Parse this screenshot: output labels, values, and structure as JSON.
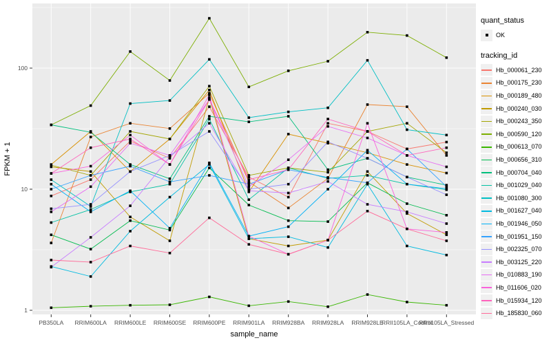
{
  "figure": {
    "background": "#FFFFFF",
    "panel_background": "#EBEBEB",
    "gridline_color": "#FFFFFF",
    "tick_color": "#333333",
    "tick_label_color": "#4D4D4D",
    "point_color": "#000000"
  },
  "chart_data": {
    "type": "line",
    "title": "",
    "xlabel": "sample_name",
    "ylabel": "FPKM + 1",
    "y_scale": "log10",
    "y_ticks": [
      1,
      10,
      100
    ],
    "y_minor_ticks": [
      3.162,
      31.62,
      316.2
    ],
    "ylim": [
      0.9,
      340
    ],
    "grid": true,
    "legend_position": "right",
    "categories": [
      "PB350LA",
      "RRIM600LA",
      "RRIM600LE",
      "RRIM600SE",
      "RRIM600PE",
      "RRIM901LA",
      "RRIM928BA",
      "RRIM928LA",
      "RRIM928LE",
      "RRII105LA_Control",
      "RRII105LA_Stressed"
    ],
    "legend": {
      "quant_status_title": "quant_status",
      "quant_status_items": [
        "OK"
      ],
      "tracking_title": "tracking_id"
    },
    "series": [
      {
        "tracking_id": "Hb_000061_230",
        "color": "#F8766D",
        "values": [
          8.8,
          12,
          25,
          18,
          48,
          12.6,
          8.6,
          35,
          30,
          21.5,
          24.5
        ]
      },
      {
        "tracking_id": "Hb_000175_230",
        "color": "#EA8331",
        "values": [
          3.6,
          27,
          35,
          31.7,
          62,
          11.5,
          7.0,
          12.3,
          50,
          48,
          19
        ]
      },
      {
        "tracking_id": "Hb_000189_480",
        "color": "#D89000",
        "values": [
          16,
          30,
          14,
          26,
          66,
          9.5,
          28.5,
          24,
          20,
          16,
          13.6
        ]
      },
      {
        "tracking_id": "Hb_000240_030",
        "color": "#C09B00",
        "values": [
          15.3,
          14,
          5.9,
          3.75,
          57,
          3.9,
          3.4,
          3.8,
          14,
          6.3,
          4.2
        ]
      },
      {
        "tracking_id": "Hb_000243_350",
        "color": "#A3A500",
        "values": [
          15.8,
          13,
          30,
          26,
          71,
          13,
          15,
          13.8,
          30,
          35,
          20
        ]
      },
      {
        "tracking_id": "Hb_000590_120",
        "color": "#7CAE00",
        "values": [
          34,
          49,
          137,
          79,
          258,
          70,
          95,
          114,
          198,
          186,
          122
        ]
      },
      {
        "tracking_id": "Hb_000613_070",
        "color": "#39B600",
        "values": [
          1.05,
          1.08,
          1.1,
          1.11,
          1.29,
          1.09,
          1.18,
          1.07,
          1.35,
          1.17,
          1.1
        ]
      },
      {
        "tracking_id": "Hb_000656_310",
        "color": "#00BB4E",
        "values": [
          4.2,
          3.2,
          5.5,
          4.6,
          15,
          7.4,
          5.5,
          5.4,
          11.3,
          7.6,
          6.1
        ]
      },
      {
        "tracking_id": "Hb_000704_040",
        "color": "#00BF7D",
        "values": [
          34,
          29.5,
          16,
          12.2,
          40,
          36,
          40,
          14.5,
          18,
          12.6,
          10.8
        ]
      },
      {
        "tracking_id": "Hb_001029_040",
        "color": "#00C1A3",
        "values": [
          5.3,
          6.8,
          9.5,
          11,
          38,
          8.2,
          15,
          12.3,
          13,
          11,
          9.9
        ]
      },
      {
        "tracking_id": "Hb_001080_300",
        "color": "#00BFC4",
        "values": [
          12,
          7.2,
          51,
          54,
          118,
          39,
          43.5,
          47,
          116,
          31,
          28
        ]
      },
      {
        "tracking_id": "Hb_001627_040",
        "color": "#00BAE0",
        "values": [
          2.3,
          1.9,
          4.5,
          8.6,
          16,
          3.9,
          4.05,
          3.3,
          11,
          3.4,
          2.86
        ]
      },
      {
        "tracking_id": "Hb_001946_050",
        "color": "#00B0F6",
        "values": [
          11,
          6.5,
          9.7,
          4.76,
          16.5,
          4.1,
          4.9,
          10,
          21,
          11,
          10.1
        ]
      },
      {
        "tracking_id": "Hb_001951_150",
        "color": "#35A2FF",
        "values": [
          10,
          13,
          15.5,
          11.5,
          13,
          11,
          14.5,
          12.5,
          11.3,
          21.5,
          10.5
        ]
      },
      {
        "tracking_id": "Hb_002325_070",
        "color": "#9590FF",
        "values": [
          6.9,
          7.5,
          14,
          19,
          30,
          10,
          11,
          24.6,
          18,
          12.6,
          9.0
        ]
      },
      {
        "tracking_id": "Hb_003125_220",
        "color": "#C77CFF",
        "values": [
          2.27,
          4.0,
          7.3,
          18.5,
          35,
          9.7,
          9.3,
          11.6,
          7.5,
          6.5,
          5.2
        ]
      },
      {
        "tracking_id": "Hb_010883_190",
        "color": "#E76BF3",
        "values": [
          6.5,
          10.5,
          24,
          19,
          55,
          10.5,
          17.5,
          33,
          26.5,
          19,
          15.3
        ]
      },
      {
        "tracking_id": "Hb_011606_020",
        "color": "#FA62DB",
        "values": [
          13.5,
          15.5,
          28,
          16,
          60,
          4.1,
          2.9,
          3.8,
          35,
          4.7,
          4.4
        ]
      },
      {
        "tracking_id": "Hb_015934_120",
        "color": "#FF62BC",
        "values": [
          13.5,
          22,
          26,
          16,
          55,
          12,
          14.5,
          38,
          30,
          19,
          22
        ]
      },
      {
        "tracking_id": "Hb_185830_060",
        "color": "#FF6A98",
        "values": [
          2.6,
          2.5,
          3.4,
          2.97,
          5.8,
          3.5,
          2.9,
          3.8,
          6.6,
          4.7,
          3.75
        ]
      }
    ]
  }
}
